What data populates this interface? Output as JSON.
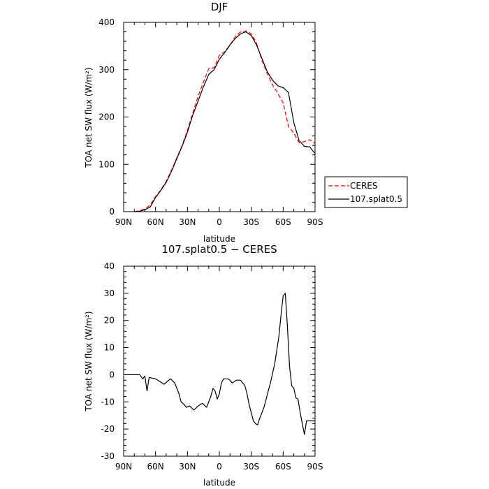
{
  "chart_data": [
    {
      "type": "line",
      "title": "DJF",
      "xlabel": "latitude",
      "ylabel": "TOA net SW flux (W/m²)",
      "xlim": [
        -90,
        90
      ],
      "ylim": [
        0,
        400
      ],
      "x_ticks": [
        {
          "value": -90,
          "label": "90N"
        },
        {
          "value": -60,
          "label": "60N"
        },
        {
          "value": -30,
          "label": "30N"
        },
        {
          "value": 0,
          "label": "0"
        },
        {
          "value": 30,
          "label": "30S"
        },
        {
          "value": 60,
          "label": "60S"
        },
        {
          "value": 90,
          "label": "90S"
        }
      ],
      "y_ticks": [
        0,
        100,
        200,
        300,
        400
      ],
      "legend_position": "right",
      "series": [
        {
          "name": "CERES",
          "color": "#ff0000",
          "dash": "dashed",
          "x": [
            -80,
            -75,
            -70,
            -65,
            -60,
            -55,
            -50,
            -45,
            -40,
            -35,
            -30,
            -25,
            -20,
            -15,
            -10,
            -5,
            0,
            5,
            10,
            15,
            20,
            25,
            30,
            35,
            40,
            45,
            50,
            55,
            60,
            65,
            70,
            75,
            80,
            85,
            88,
            90
          ],
          "y": [
            0,
            2,
            6,
            14,
            32,
            46,
            64,
            88,
            114,
            140,
            172,
            208,
            244,
            274,
            302,
            304,
            330,
            338,
            352,
            370,
            380,
            382,
            376,
            356,
            320,
            292,
            268,
            250,
            230,
            180,
            166,
            146,
            148,
            152,
            148,
            144
          ]
        },
        {
          "name": "107.splat0.5",
          "color": "#000000",
          "dash": "solid",
          "x": [
            -80,
            -75,
            -70,
            -65,
            -60,
            -55,
            -50,
            -45,
            -40,
            -35,
            -30,
            -25,
            -20,
            -15,
            -10,
            -5,
            0,
            5,
            10,
            15,
            20,
            25,
            30,
            35,
            40,
            45,
            50,
            55,
            60,
            65,
            70,
            75,
            80,
            85,
            88,
            90
          ],
          "y": [
            0,
            1,
            4,
            10,
            30,
            45,
            62,
            85,
            112,
            138,
            168,
            204,
            234,
            264,
            290,
            300,
            322,
            336,
            352,
            366,
            376,
            380,
            372,
            352,
            324,
            296,
            278,
            266,
            262,
            252,
            188,
            150,
            138,
            137,
            128,
            124
          ]
        }
      ]
    },
    {
      "type": "line",
      "title": "107.splat0.5 − CERES",
      "xlabel": "latitude",
      "ylabel": "TOA net SW flux (W/m²)",
      "xlim": [
        -90,
        90
      ],
      "ylim": [
        -30,
        40
      ],
      "x_ticks": [
        {
          "value": -90,
          "label": "90N"
        },
        {
          "value": -60,
          "label": "60N"
        },
        {
          "value": -30,
          "label": "30N"
        },
        {
          "value": 0,
          "label": "0"
        },
        {
          "value": 30,
          "label": "30S"
        },
        {
          "value": 60,
          "label": "60S"
        },
        {
          "value": 90,
          "label": "90S"
        }
      ],
      "y_ticks": [
        -30,
        -20,
        -10,
        0,
        10,
        20,
        30,
        40
      ],
      "series": [
        {
          "name": "",
          "color": "#000000",
          "dash": "solid",
          "x": [
            -90,
            -75,
            -72,
            -70,
            -68,
            -66,
            -60,
            -52,
            -46,
            -42,
            -38,
            -36,
            -33,
            -31,
            -28,
            -24,
            -20,
            -16,
            -12,
            -10,
            -8,
            -6,
            -4,
            -2,
            0,
            2,
            4,
            6,
            8,
            10,
            12,
            16,
            20,
            24,
            26,
            28,
            30,
            32,
            34,
            36,
            38,
            40,
            42,
            44,
            46,
            48,
            52,
            56,
            58,
            60,
            62,
            64,
            66,
            68,
            70,
            72,
            74,
            76,
            78,
            80,
            82,
            84,
            86,
            88,
            90
          ],
          "y": [
            0,
            0,
            -1.5,
            -0.5,
            -6,
            -1,
            -1.5,
            -3.5,
            -1.5,
            -3,
            -7,
            -10,
            -11,
            -12,
            -11.5,
            -13,
            -11.5,
            -10.5,
            -12,
            -10,
            -8,
            -5,
            -6,
            -9,
            -7,
            -3,
            -1.5,
            -1.5,
            -1.5,
            -2,
            -3,
            -2,
            -2,
            -4,
            -7,
            -11,
            -14,
            -17,
            -18,
            -18.5,
            -16,
            -14,
            -12,
            -9,
            -6,
            -3,
            4,
            14,
            22,
            29,
            30,
            18,
            3,
            -4,
            -5,
            -8.5,
            -9,
            -14,
            -18,
            -22,
            -17,
            -17,
            -17,
            -17,
            -17
          ]
        }
      ]
    }
  ]
}
